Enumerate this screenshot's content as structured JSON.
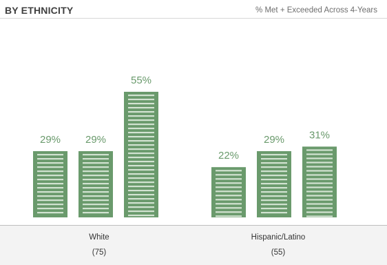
{
  "header": {
    "title": "BY ETHNICITY",
    "subtitle": "% Met + Exceeded Across 4-Years"
  },
  "chart_data": {
    "type": "bar",
    "groups": [
      {
        "name": "White",
        "count": "(75)",
        "values": [
          29,
          29,
          55
        ],
        "labels": [
          "29%",
          "29%",
          "55%"
        ]
      },
      {
        "name": "Hispanic/Latino",
        "count": "(55)",
        "values": [
          22,
          29,
          31
        ],
        "labels": [
          "22%",
          "29%",
          "31%"
        ]
      }
    ],
    "ylim": [
      0,
      60
    ],
    "bar_color": "#6a9a6c",
    "label_color": "#6a9a6c",
    "grid": false
  }
}
